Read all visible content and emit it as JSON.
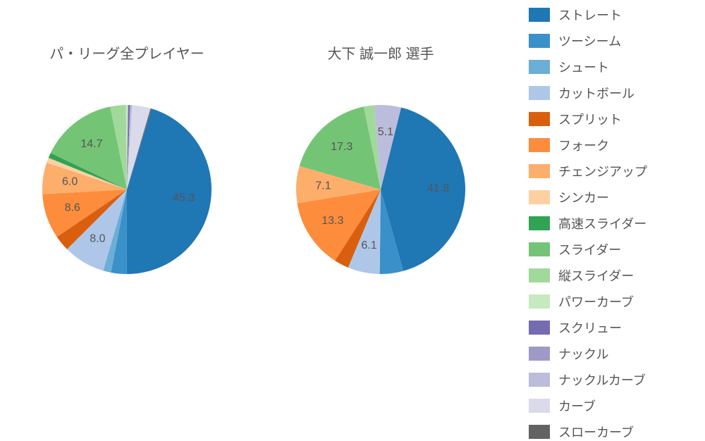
{
  "background_color": "#ffffff",
  "label_fontsize": 16,
  "title_fontsize": 20,
  "legend_fontsize": 18,
  "legend_swatch": {
    "width": 30,
    "height": 20
  },
  "text_color": "#555555",
  "pies": [
    {
      "title": "パ・リーグ全プレイヤー",
      "start_angle_deg": 73,
      "direction": "clockwise",
      "radius": 120,
      "label_threshold": 5.0,
      "label_radius_factor": 0.68,
      "slices": [
        {
          "name": "ストレート",
          "value": 45.3,
          "color": "#1f77b4"
        },
        {
          "name": "ツーシーム",
          "value": 3.0,
          "color": "#3a90c9"
        },
        {
          "name": "シュート",
          "value": 1.5,
          "color": "#6baed6"
        },
        {
          "name": "カットボール",
          "value": 8.0,
          "color": "#aec7e8"
        },
        {
          "name": "スプリット",
          "value": 3.0,
          "color": "#d95f0e"
        },
        {
          "name": "フォーク",
          "value": 8.6,
          "color": "#fd8d3c"
        },
        {
          "name": "チェンジアップ",
          "value": 6.0,
          "color": "#fdae6b"
        },
        {
          "name": "シンカー",
          "value": 1.0,
          "color": "#fdd0a2"
        },
        {
          "name": "高速スライダー",
          "value": 1.0,
          "color": "#31a354"
        },
        {
          "name": "スライダー",
          "value": 14.7,
          "color": "#74c476"
        },
        {
          "name": "縦スライダー",
          "value": 3.0,
          "color": "#a1d99b"
        },
        {
          "name": "パワーカーブ",
          "value": 0.4,
          "color": "#c7e9c0"
        },
        {
          "name": "スクリュー",
          "value": 0.4,
          "color": "#756bb1"
        },
        {
          "name": "ナックル",
          "value": 0.0,
          "color": "#9e9ac8"
        },
        {
          "name": "ナックルカーブ",
          "value": 0.4,
          "color": "#bcbddc"
        },
        {
          "name": "カーブ",
          "value": 3.5,
          "color": "#dadaeb"
        },
        {
          "name": "スローカーブ",
          "value": 0.2,
          "color": "#636363"
        }
      ]
    },
    {
      "title": "大下 誠一郎  選手",
      "start_angle_deg": 76,
      "direction": "clockwise",
      "radius": 120,
      "label_threshold": 5.0,
      "label_radius_factor": 0.68,
      "slices": [
        {
          "name": "ストレート",
          "value": 41.8,
          "color": "#1f77b4"
        },
        {
          "name": "ツーシーム",
          "value": 4.5,
          "color": "#3a90c9"
        },
        {
          "name": "シュート",
          "value": 0.0,
          "color": "#6baed6"
        },
        {
          "name": "カットボール",
          "value": 6.1,
          "color": "#aec7e8"
        },
        {
          "name": "スプリット",
          "value": 2.8,
          "color": "#d95f0e"
        },
        {
          "name": "フォーク",
          "value": 13.3,
          "color": "#fd8d3c"
        },
        {
          "name": "チェンジアップ",
          "value": 7.1,
          "color": "#fdae6b"
        },
        {
          "name": "シンカー",
          "value": 0.0,
          "color": "#fdd0a2"
        },
        {
          "name": "高速スライダー",
          "value": 0.0,
          "color": "#31a354"
        },
        {
          "name": "スライダー",
          "value": 17.3,
          "color": "#74c476"
        },
        {
          "name": "縦スライダー",
          "value": 2.0,
          "color": "#a1d99b"
        },
        {
          "name": "パワーカーブ",
          "value": 0.0,
          "color": "#c7e9c0"
        },
        {
          "name": "スクリュー",
          "value": 0.0,
          "color": "#756bb1"
        },
        {
          "name": "ナックル",
          "value": 0.0,
          "color": "#9e9ac8"
        },
        {
          "name": "ナックルカーブ",
          "value": 5.1,
          "color": "#bcbddc"
        },
        {
          "name": "カーブ",
          "value": 0.0,
          "color": "#dadaeb"
        },
        {
          "name": "スローカーブ",
          "value": 0.0,
          "color": "#636363"
        }
      ]
    }
  ],
  "legend": {
    "items": [
      {
        "label": "ストレート",
        "color": "#1f77b4"
      },
      {
        "label": "ツーシーム",
        "color": "#3a90c9"
      },
      {
        "label": "シュート",
        "color": "#6baed6"
      },
      {
        "label": "カットボール",
        "color": "#aec7e8"
      },
      {
        "label": "スプリット",
        "color": "#d95f0e"
      },
      {
        "label": "フォーク",
        "color": "#fd8d3c"
      },
      {
        "label": "チェンジアップ",
        "color": "#fdae6b"
      },
      {
        "label": "シンカー",
        "color": "#fdd0a2"
      },
      {
        "label": "高速スライダー",
        "color": "#31a354"
      },
      {
        "label": "スライダー",
        "color": "#74c476"
      },
      {
        "label": "縦スライダー",
        "color": "#a1d99b"
      },
      {
        "label": "パワーカーブ",
        "color": "#c7e9c0"
      },
      {
        "label": "スクリュー",
        "color": "#756bb1"
      },
      {
        "label": "ナックル",
        "color": "#9e9ac8"
      },
      {
        "label": "ナックルカーブ",
        "color": "#bcbddc"
      },
      {
        "label": "カーブ",
        "color": "#dadaeb"
      },
      {
        "label": "スローカーブ",
        "color": "#636363"
      }
    ]
  }
}
